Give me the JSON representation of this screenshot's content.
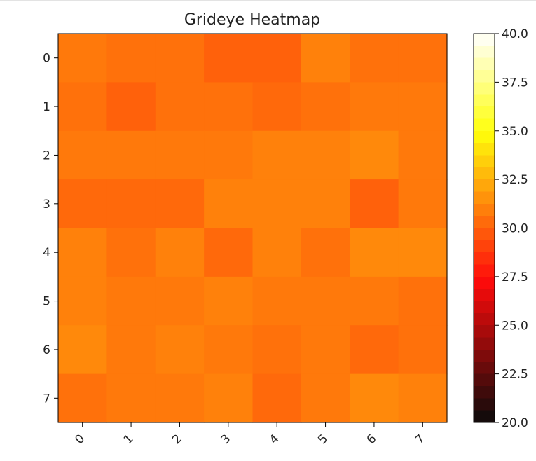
{
  "chart_data": {
    "type": "heatmap",
    "title": "Grideye Heatmap",
    "xlabel": "",
    "ylabel": "",
    "x_ticks": [
      "0",
      "1",
      "2",
      "3",
      "4",
      "5",
      "6",
      "7"
    ],
    "y_ticks": [
      "0",
      "1",
      "2",
      "3",
      "4",
      "5",
      "6",
      "7"
    ],
    "colormap": "hot",
    "clim": [
      20,
      40
    ],
    "colorbar_ticks": [
      "20.0",
      "22.5",
      "25.0",
      "27.5",
      "30.0",
      "32.5",
      "35.0",
      "37.5",
      "40.0"
    ],
    "values": [
      [
        30.75,
        30.5,
        30.5,
        30.0,
        30.0,
        31.0,
        30.5,
        30.5
      ],
      [
        30.5,
        30.0,
        30.5,
        30.5,
        30.25,
        30.5,
        30.75,
        30.75
      ],
      [
        30.75,
        30.75,
        30.75,
        30.75,
        31.0,
        31.0,
        31.25,
        30.75
      ],
      [
        30.25,
        30.25,
        30.25,
        31.0,
        31.0,
        31.0,
        30.0,
        30.75
      ],
      [
        31.0,
        30.5,
        31.0,
        30.25,
        31.0,
        30.5,
        31.25,
        31.25
      ],
      [
        31.0,
        30.75,
        30.75,
        31.0,
        30.75,
        30.75,
        30.75,
        30.5
      ],
      [
        31.25,
        30.75,
        31.0,
        30.75,
        30.5,
        30.75,
        30.25,
        30.5
      ],
      [
        30.5,
        30.75,
        30.75,
        31.0,
        30.25,
        30.75,
        31.25,
        31.0
      ]
    ]
  }
}
